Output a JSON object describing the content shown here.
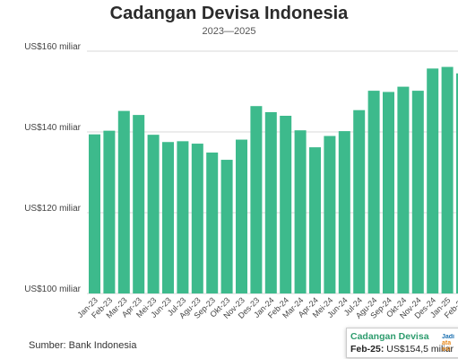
{
  "chart_data": {
    "type": "bar",
    "title": "Cadangan Devisa Indonesia",
    "subtitle": "2023—2025",
    "categories": [
      "Jan-23",
      "Feb-23",
      "Mar-23",
      "Apr-23",
      "Mei-23",
      "Jun-23",
      "Jul-23",
      "Agu-23",
      "Sep-23",
      "Okt-23",
      "Nov-23",
      "Des-23",
      "Jan-24",
      "Feb-24",
      "Mar-24",
      "Apr-24",
      "Mei-24",
      "Jun-24",
      "Jul-24",
      "Agu-24",
      "Sep-24",
      "Okt-24",
      "Nov-24",
      "Des-24",
      "Jan-25",
      "Feb-25"
    ],
    "values": [
      139.4,
      140.3,
      145.2,
      144.2,
      139.3,
      137.5,
      137.7,
      137.1,
      134.9,
      133.1,
      138.1,
      146.4,
      144.9,
      144.0,
      140.4,
      136.2,
      139.0,
      140.2,
      145.4,
      150.2,
      149.9,
      151.2,
      150.2,
      155.7,
      156.1,
      154.5
    ],
    "ylim": [
      100,
      160
    ],
    "yticks": [
      100,
      120,
      140,
      160
    ],
    "ytick_labels": [
      "US$100 miliar",
      "US$120 miliar",
      "US$140 miliar",
      "US$160 miliar"
    ],
    "xlabel": "",
    "ylabel": "",
    "grid": true,
    "bar_color": "#3dba8c"
  },
  "source": "Sumber: Bank Indonesia",
  "tooltip": {
    "series": "Cadangan Devisa",
    "category": "Feb-25:",
    "value": "US$154,5 miliar"
  },
  "logo": {
    "line1": "Jadi",
    "line2": "ata",
    "line3": "evi"
  }
}
